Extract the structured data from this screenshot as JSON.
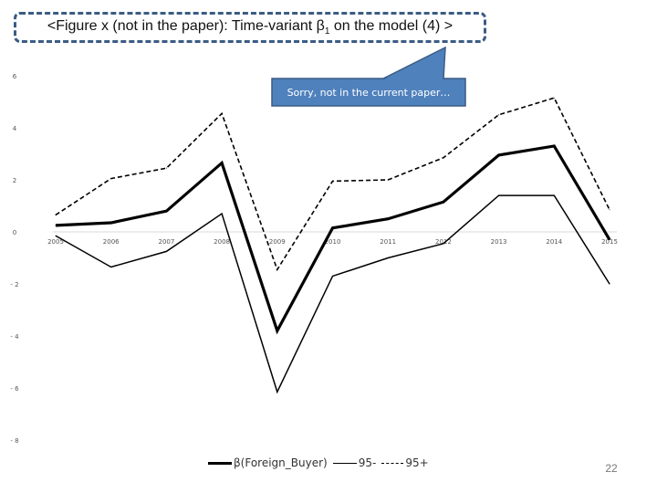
{
  "slide": {
    "title_main": "<Figure x (not in the paper): Time-variant β",
    "title_sub": "1",
    "title_tail": " on the model (4) >",
    "callout": "Sorry, not in the current paper…",
    "page_number": "22"
  },
  "colors": {
    "title_border": "#3b5c84",
    "callout_fill": "#4f81bd",
    "callout_border": "#3b5c84",
    "series": "#000000",
    "gridline": "#d9d9d9"
  },
  "chart_data": {
    "type": "line",
    "title": "",
    "xlabel": "",
    "ylabel": "",
    "categories": [
      "2005",
      "2006",
      "2007",
      "2008",
      "2009",
      "2010",
      "2011",
      "2012",
      "2013",
      "2014",
      "2015"
    ],
    "ylim": [
      -8,
      6
    ],
    "yticks": [
      6,
      4,
      2,
      0,
      -2,
      -4,
      -6,
      -8
    ],
    "ytick_labels": [
      "6",
      "4",
      "2",
      "0",
      "- 2",
      "- 4",
      "- 6",
      "- 8"
    ],
    "grid": false,
    "legend_position": "bottom",
    "series": [
      {
        "name": "β(Foreign_Buyer)",
        "style": "thick-solid",
        "values": [
          0.25,
          0.35,
          0.8,
          2.65,
          -3.8,
          0.15,
          0.5,
          1.15,
          2.95,
          3.3,
          -0.3
        ]
      },
      {
        "name": "95-",
        "style": "thin-solid",
        "values": [
          -0.15,
          -1.35,
          -0.75,
          0.7,
          -6.15,
          -1.7,
          -1.0,
          -0.45,
          1.4,
          1.4,
          -2.0
        ]
      },
      {
        "name": "95+",
        "style": "dashed",
        "values": [
          0.65,
          2.05,
          2.45,
          4.55,
          -1.45,
          1.95,
          2.0,
          2.85,
          4.5,
          5.15,
          0.85
        ]
      }
    ]
  }
}
